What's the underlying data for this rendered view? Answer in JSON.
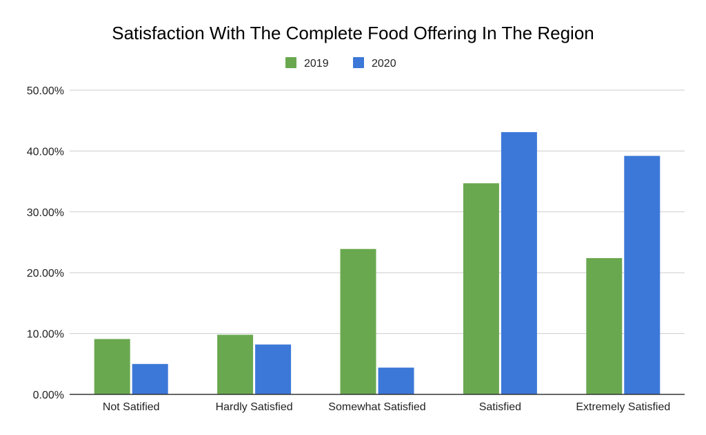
{
  "chart_data": {
    "type": "bar",
    "title": "Satisfaction With The Complete Food Offering In The Region",
    "xlabel": "",
    "ylabel": "",
    "categories": [
      "Not Satified",
      "Hardly Satisfied",
      "Somewhat Satisfied",
      "Satisfied",
      "Extremely Satisfied"
    ],
    "series": [
      {
        "name": "2019",
        "color": "#6aa84f",
        "values": [
          9.1,
          9.8,
          23.9,
          34.7,
          22.4
        ]
      },
      {
        "name": "2020",
        "color": "#3c78d8",
        "values": [
          5.0,
          8.2,
          4.4,
          43.1,
          39.2
        ]
      }
    ],
    "ylim": [
      0,
      50
    ],
    "yticks": [
      "0.00%",
      "10.00%",
      "20.00%",
      "30.00%",
      "40.00%",
      "50.00%"
    ],
    "grid": true,
    "legend_position": "top-center"
  }
}
